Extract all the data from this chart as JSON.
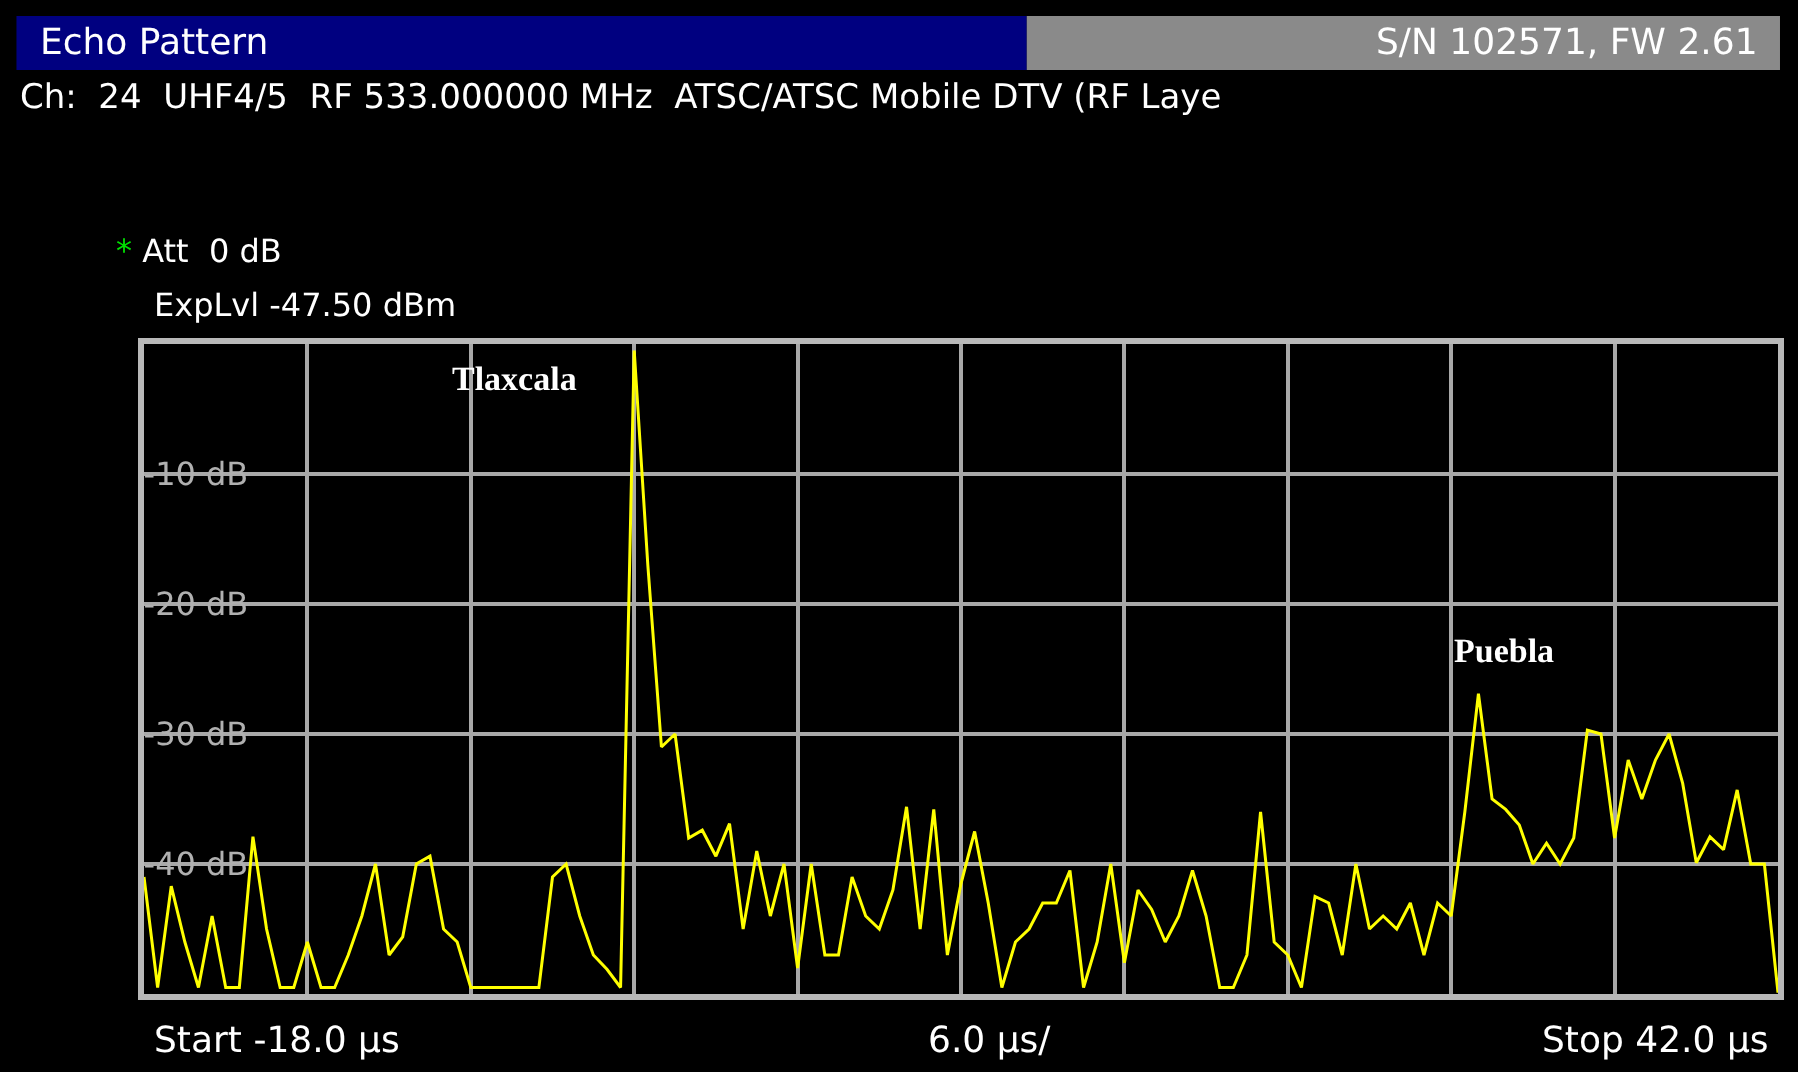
{
  "chart_data": {
    "type": "line",
    "title": "Echo Pattern",
    "subtitle": "Ch:  24  UHF4/5  RF 533.000000 MHz  ATSC/ATSC Mobile DTV (RF Laye",
    "annotations": [
      "S/N 102571, FW 2.61",
      "* Att  0 dB",
      "ExpLvl -47.50 dBm",
      "Start -18.0 µs",
      "6.0 µs/",
      "Stop 42.0 µs",
      "Tlaxcala",
      "Puebla"
    ],
    "categories": [
      null,
      null,
      null,
      null,
      null,
      null,
      null,
      null,
      null,
      null,
      null,
      null,
      null,
      null,
      null,
      null,
      null,
      null,
      null,
      null,
      null,
      null,
      null,
      null,
      null,
      null,
      null,
      null,
      null,
      null,
      null,
      null,
      null,
      null,
      null,
      null,
      null,
      null,
      null,
      null,
      null,
      null,
      null,
      null,
      null,
      null,
      null,
      null,
      null,
      null,
      null,
      null,
      null,
      null,
      null,
      null,
      null,
      null,
      null,
      null,
      null,
      null,
      null,
      null,
      null,
      null,
      null,
      null,
      null,
      null,
      null,
      null,
      null,
      null,
      null,
      null,
      null,
      null,
      null,
      null,
      null,
      null,
      null,
      null,
      null,
      null,
      null,
      null,
      null,
      null,
      null,
      null,
      null,
      null,
      null,
      null,
      null,
      null,
      null,
      null,
      null,
      null,
      null,
      null,
      null,
      null,
      null,
      null,
      null,
      null,
      null,
      null,
      null,
      null,
      null,
      null,
      null,
      null,
      null,
      null,
      null
    ],
    "values": [
      -41,
      -49.5,
      -41.7,
      -46,
      -49.5,
      -44,
      -49.5,
      -49.5,
      -37.9,
      -45,
      -49.5,
      -49.5,
      -46,
      -49.5,
      -49.5,
      -47,
      -44,
      -40,
      -47,
      -45.6,
      -40,
      -39.4,
      -45,
      -46,
      -49.5,
      -49.5,
      -49.5,
      -49.5,
      -49.5,
      -49.5,
      -41,
      -40,
      -44,
      -47,
      -48.1,
      -49.5,
      -0.5,
      -17,
      -31,
      -30,
      -38,
      -37.4,
      -39.4,
      -36.9,
      -45,
      -39,
      -44,
      -40,
      -48,
      -40,
      -47,
      -47,
      -41,
      -44,
      -45,
      -42,
      -35.6,
      -45,
      -35.8,
      -47,
      -41.5,
      -37.5,
      -43,
      -49.5,
      -46,
      -45,
      -43,
      -43,
      -40.5,
      -49.5,
      -46,
      -40,
      -47.6,
      -42,
      -43.5,
      -46,
      -44,
      -40.5,
      -44,
      -49.5,
      -49.5,
      -47,
      -36,
      -46,
      -47,
      -49.5,
      -42.5,
      -43,
      -47,
      -40,
      -45,
      -44,
      -45,
      -43,
      -47,
      -43,
      -44,
      -36,
      -26.9,
      -35,
      -35.8,
      -37,
      -40,
      -38.4,
      -40,
      -38,
      -29.7,
      -30,
      -38,
      -32,
      -35,
      -32,
      -30,
      -33.8,
      -39.9,
      -37.9,
      -38.9,
      -34.3,
      -40,
      -40,
      -49.9
    ],
    "color": "#ffff00",
    "ylim": [
      -50,
      0
    ],
    "yticks": [
      {
        "value": -50,
        "label": null
      },
      {
        "value": -40,
        "label": "-40 dB"
      },
      {
        "value": -30,
        "label": "-30 dB"
      },
      {
        "value": -20,
        "label": "-20 dB"
      },
      {
        "value": -10,
        "label": "-10 dB"
      },
      {
        "value": 0,
        "label": null
      }
    ],
    "tick_labels": "y",
    "grid": true,
    "marker": "none",
    "line_style": "solid"
  }
}
